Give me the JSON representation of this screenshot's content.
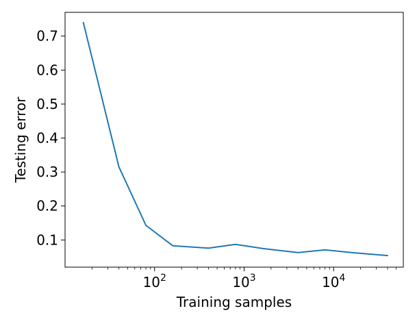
{
  "chart_data": {
    "type": "line",
    "xscale": "log",
    "xlabel": "Training samples",
    "ylabel": "Testing error",
    "xlim": [
      10,
      60000
    ],
    "ylim": [
      0.02,
      0.77
    ],
    "grid": false,
    "line_color": "#1f77b4",
    "y_ticks": [
      {
        "value": 0.1,
        "label": "0.1"
      },
      {
        "value": 0.2,
        "label": "0.2"
      },
      {
        "value": 0.3,
        "label": "0.3"
      },
      {
        "value": 0.4,
        "label": "0.4"
      },
      {
        "value": 0.5,
        "label": "0.5"
      },
      {
        "value": 0.6,
        "label": "0.6"
      },
      {
        "value": 0.7,
        "label": "0.7"
      }
    ],
    "x_ticks": [
      {
        "value": 100,
        "base": "10",
        "exp": "2"
      },
      {
        "value": 1000,
        "base": "10",
        "exp": "3"
      },
      {
        "value": 10000,
        "base": "10",
        "exp": "4"
      }
    ],
    "series": [
      {
        "x": [
          16,
          40,
          80,
          160,
          400,
          800,
          1600,
          4000,
          8000,
          16000,
          40000
        ],
        "y": [
          0.74,
          0.315,
          0.143,
          0.083,
          0.076,
          0.087,
          0.075,
          0.063,
          0.071,
          0.063,
          0.054
        ]
      }
    ]
  }
}
